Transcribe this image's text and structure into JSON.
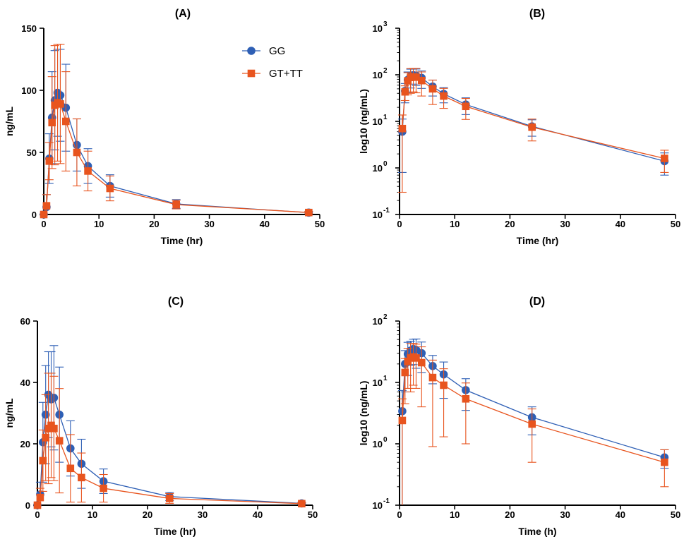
{
  "colors": {
    "GG": "#2E5FB5",
    "GT_TT": "#E8541E",
    "axis": "#000000"
  },
  "legend": {
    "items": [
      {
        "name": "GG",
        "label": "GG",
        "marker": "circle"
      },
      {
        "name": "GT_TT",
        "label": "GT+TT",
        "marker": "square"
      }
    ]
  },
  "chart_data": [
    {
      "id": "A",
      "type": "line",
      "title": "(A)",
      "xlabel": "Time (hr)",
      "ylabel": "ng/mL",
      "yscale": "linear",
      "xlim": [
        0,
        50
      ],
      "ylim": [
        0,
        150
      ],
      "xticks": [
        0,
        10,
        20,
        30,
        40,
        50
      ],
      "xtick_labels": [
        "0",
        "10",
        "20",
        "30",
        "40",
        "50"
      ],
      "yticks": [
        0,
        50,
        100,
        150
      ],
      "ytick_labels": [
        "0",
        "50",
        "100",
        "150"
      ],
      "legend": true,
      "series": [
        {
          "name": "GG",
          "x": [
            0,
            0.5,
            1,
            1.5,
            2,
            2.5,
            3,
            4,
            6,
            8,
            12,
            24,
            48
          ],
          "y": [
            0,
            6,
            45,
            78,
            92,
            98,
            96,
            86,
            56,
            39,
            23,
            8.5,
            1.5
          ],
          "err": [
            0,
            10,
            20,
            37,
            40,
            35,
            37,
            35,
            21,
            14,
            9,
            3.5,
            1
          ]
        },
        {
          "name": "GT_TT",
          "x": [
            0,
            0.5,
            1,
            1.5,
            2,
            2.5,
            3,
            4,
            6,
            8,
            12,
            24,
            48
          ],
          "y": [
            0,
            7,
            43,
            74,
            88,
            90,
            89,
            75,
            50,
            35,
            21,
            8,
            1.6
          ],
          "err": [
            0,
            9,
            15,
            37,
            48,
            47,
            48,
            40,
            27,
            16,
            10,
            3.5,
            1
          ]
        }
      ]
    },
    {
      "id": "B",
      "type": "line",
      "title": "(B)",
      "xlabel": "Time (hr)",
      "ylabel": "log10 (ng/mL)",
      "yscale": "log",
      "xlim": [
        0,
        50
      ],
      "ylim": [
        0.1,
        1000
      ],
      "xticks": [
        0,
        10,
        20,
        30,
        40,
        50
      ],
      "xtick_labels": [
        "0",
        "10",
        "20",
        "30",
        "40",
        "50"
      ],
      "yticks": [
        0.1,
        1,
        10,
        100,
        1000
      ],
      "ytick_labels": [
        "10",
        "10",
        "10",
        "10",
        "10"
      ],
      "ytick_exponents": [
        "-1",
        "0",
        "1",
        "2",
        "3"
      ],
      "legend": false,
      "series": [
        {
          "name": "GG",
          "x": [
            0.5,
            1,
            1.5,
            2,
            2.5,
            3,
            4,
            6,
            8,
            12,
            24,
            48
          ],
          "y": [
            6,
            45,
            78,
            92,
            98,
            96,
            86,
            56,
            39,
            23,
            7.8,
            1.4
          ],
          "err": [
            5.2,
            20,
            37,
            40,
            35,
            37,
            35,
            21,
            14,
            9,
            3,
            0.7
          ]
        },
        {
          "name": "GT_TT",
          "x": [
            0.5,
            1,
            1.5,
            2,
            2.5,
            3,
            4,
            6,
            8,
            12,
            24,
            48
          ],
          "y": [
            7,
            43,
            74,
            88,
            90,
            89,
            75,
            50,
            35,
            21,
            7.5,
            1.6
          ],
          "err": [
            6.7,
            15,
            37,
            48,
            47,
            48,
            40,
            27,
            16,
            10,
            3.7,
            0.8
          ]
        }
      ]
    },
    {
      "id": "C",
      "type": "line",
      "title": "(C)",
      "xlabel": "Time (hr)",
      "ylabel": "ng/mL",
      "yscale": "linear",
      "xlim": [
        0,
        50
      ],
      "ylim": [
        0,
        60
      ],
      "xticks": [
        0,
        10,
        20,
        30,
        40,
        50
      ],
      "xtick_labels": [
        "0",
        "10",
        "20",
        "30",
        "40",
        "50"
      ],
      "yticks": [
        0,
        20,
        40,
        60
      ],
      "ytick_labels": [
        "0",
        "20",
        "40",
        "60"
      ],
      "legend": false,
      "series": [
        {
          "name": "GG",
          "x": [
            0,
            0.5,
            1,
            1.5,
            2,
            2.5,
            3,
            4,
            6,
            8,
            12,
            24,
            48
          ],
          "y": [
            0,
            3.5,
            20.5,
            29.5,
            36,
            34.5,
            35,
            29.5,
            18.5,
            13.5,
            7.8,
            2.8,
            0.6
          ],
          "err": [
            0,
            4,
            13,
            16,
            14,
            15.5,
            17,
            15.5,
            9,
            8,
            4,
            1.3,
            0.3
          ]
        },
        {
          "name": "GT_TT",
          "x": [
            0,
            0.5,
            1,
            1.5,
            2,
            2.5,
            3,
            4,
            6,
            8,
            12,
            24,
            48
          ],
          "y": [
            0,
            2.5,
            14.5,
            22,
            25,
            26,
            25,
            21,
            12,
            9,
            5.5,
            2.2,
            0.5
          ],
          "err": [
            0,
            3,
            10,
            14,
            18,
            17,
            17,
            17,
            11,
            8,
            4.5,
            1.6,
            0.3
          ]
        }
      ]
    },
    {
      "id": "D",
      "type": "line",
      "title": "(D)",
      "xlabel": "Time (h)",
      "ylabel": "log10 (ng/mL)",
      "yscale": "log",
      "xlim": [
        0,
        50
      ],
      "ylim": [
        0.1,
        100
      ],
      "xticks": [
        0,
        10,
        20,
        30,
        40,
        50
      ],
      "xtick_labels": [
        "0",
        "10",
        "20",
        "30",
        "40",
        "50"
      ],
      "yticks": [
        0.1,
        1,
        10,
        100
      ],
      "ytick_labels": [
        "10",
        "10",
        "10",
        "10"
      ],
      "ytick_exponents": [
        "-1",
        "0",
        "1",
        "2"
      ],
      "legend": false,
      "series": [
        {
          "name": "GG",
          "x": [
            0.5,
            1,
            1.5,
            2,
            2.5,
            3,
            4,
            6,
            8,
            12,
            24,
            48
          ],
          "y": [
            3.4,
            20,
            29,
            33,
            35,
            34,
            30,
            18.5,
            13.5,
            7.5,
            2.7,
            0.6
          ],
          "err": [
            4,
            13,
            16,
            14,
            15.5,
            17,
            15.5,
            9,
            8,
            4,
            1.3,
            0.2
          ]
        },
        {
          "name": "GT_TT",
          "x": [
            0.5,
            1,
            1.5,
            2,
            2.5,
            3,
            4,
            6,
            8,
            12,
            24,
            48
          ],
          "y": [
            2.4,
            14.5,
            22,
            25,
            26,
            25,
            21,
            12,
            9,
            5.4,
            2.1,
            0.5
          ],
          "err": [
            3,
            10,
            14,
            18,
            17,
            17,
            17,
            11.1,
            7.7,
            4.4,
            1.6,
            0.3
          ]
        }
      ]
    }
  ]
}
